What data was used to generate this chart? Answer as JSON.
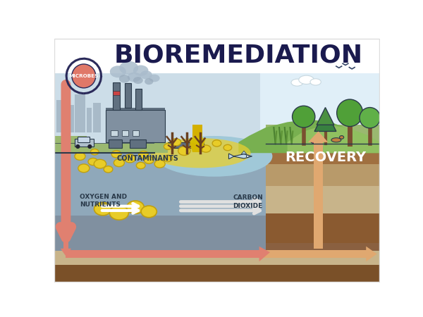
{
  "title": "BIOREMEDIATION",
  "title_fontsize": 26,
  "title_color": "#1a1a4e",
  "title_fontweight": "bold",
  "bg_color": "#ffffff",
  "label_recovery": "RECOVERY",
  "label_contaminants": "CONTAMINANTS",
  "label_oxygen": "OXYGEN AND\nNUTRIENTS",
  "label_carbon": "CARBON\nDIOXIDE",
  "label_microbes": "MICROBES",
  "colors": {
    "sky_left": "#ccdde8",
    "sky_right": "#e0eff8",
    "ground_blue_left": "#8fa8ba",
    "ground_blue_mid": "#7898aa",
    "underground_dark": "#8090a0",
    "underground_mid": "#9aa8b5",
    "sand_light": "#c8b48a",
    "sand_mid": "#b89a6a",
    "sand_dark": "#8a6040",
    "brown_top": "#a07040",
    "brown_mid": "#8a5a30",
    "brown_deep": "#7a5028",
    "green_surface": "#9ab870",
    "green_hill1": "#78b050",
    "green_hill2": "#90c060",
    "green_hill3": "#68a040",
    "water_blue": "#90c0d8",
    "water_pool": "#a0c8d8",
    "yellow_contam": "#e8d030",
    "yellow_blob": "#e8cc28",
    "blob_edge": "#c0a010",
    "arrow_red": "#e08070",
    "arrow_orange": "#e0a870",
    "arrow_white": "#ffffff",
    "smoke": "#aabccc",
    "factory_grey": "#8090a0",
    "factory_dark": "#607080",
    "chimney_red": "#cc4444",
    "tree_trunk": "#7a5030",
    "tree_green": "#50a038",
    "pine_green": "#388040",
    "microbe_salmon": "#e07868",
    "microbe_ring": "#2a2a5a",
    "outline": "#2a3a4a",
    "white": "#ffffff"
  }
}
